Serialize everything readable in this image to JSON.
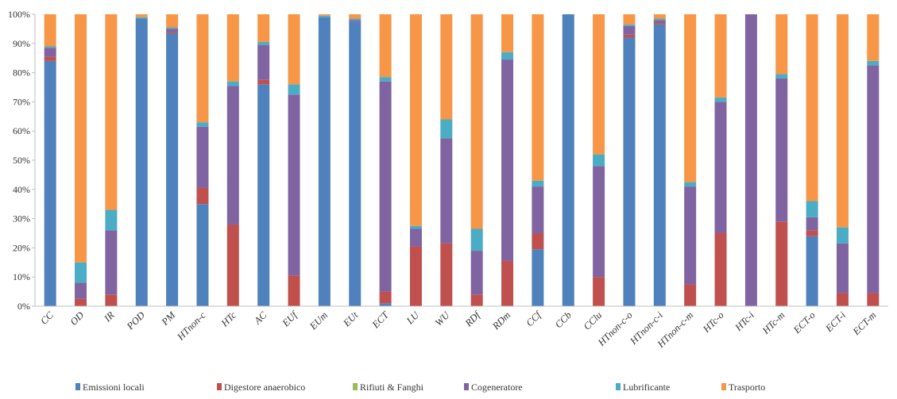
{
  "chart_data": {
    "type": "bar",
    "stacked": true,
    "normalized": true,
    "categories": [
      "CC",
      "OD",
      "IR",
      "POD",
      "PM",
      "HTnon-c",
      "HTc",
      "AC",
      "EUf",
      "EUm",
      "EUt",
      "ECT",
      "LU",
      "WU",
      "RDf",
      "RDm",
      "CCf",
      "CCb",
      "CClu",
      "HTnon-c-o",
      "HTnon-c-i",
      "HTnon-c-m",
      "HTc-o",
      "HTc-i",
      "HTc-m",
      "ECT-o",
      "ECT-i",
      "ECT-m"
    ],
    "series": [
      {
        "name": "Emissioni locali",
        "color": "#4f81bd",
        "values": [
          84,
          0,
          0,
          98.5,
          93.5,
          35,
          0,
          76,
          0,
          99,
          97.5,
          1,
          0,
          0,
          0,
          0,
          19.5,
          100,
          0,
          92,
          96.5,
          0,
          0,
          0,
          0,
          24,
          0,
          0
        ]
      },
      {
        "name": "Digestore anaerobico",
        "color": "#c0504d",
        "values": [
          1.5,
          2.5,
          4,
          0,
          0.5,
          5.5,
          28,
          1.5,
          10.5,
          0,
          0,
          4,
          20.5,
          21.5,
          4,
          15.5,
          5.5,
          0,
          10,
          1,
          0.5,
          7.5,
          25,
          0,
          29,
          2,
          4.5,
          4.5
        ]
      },
      {
        "name": "Rifiuti & Fanghi",
        "color": "#9bbb59",
        "values": [
          0,
          0,
          0,
          0,
          0,
          0,
          0,
          0,
          0,
          0,
          0,
          0,
          0,
          0,
          0,
          0,
          0,
          0,
          0,
          0,
          0,
          0,
          0,
          0,
          0,
          0,
          0,
          0
        ]
      },
      {
        "name": "Cogeneratore",
        "color": "#8064a2",
        "values": [
          3,
          5.5,
          22,
          0,
          1,
          21,
          47.5,
          12,
          62,
          0,
          0.5,
          72,
          6,
          36,
          15,
          69,
          16,
          0,
          38,
          3,
          1,
          33.5,
          45,
          100,
          49,
          4.5,
          17,
          78
        ]
      },
      {
        "name": "Lubrificante",
        "color": "#4bacc6",
        "values": [
          0.5,
          7,
          7,
          0.5,
          0.5,
          1.5,
          1.5,
          1,
          3.5,
          0.5,
          0.5,
          1.5,
          1,
          6.5,
          7.5,
          2.5,
          2,
          0,
          4,
          0.5,
          0.5,
          1.5,
          1.5,
          0,
          1.5,
          5.5,
          5.5,
          1.5
        ]
      },
      {
        "name": "Trasporto",
        "color": "#f79646",
        "values": [
          11,
          85,
          67,
          1,
          4.5,
          37,
          23,
          9.5,
          24,
          0.5,
          1.5,
          21.5,
          72.5,
          36,
          73.5,
          13,
          57,
          0,
          48,
          3.5,
          1.5,
          57.5,
          28.5,
          0,
          20.5,
          64,
          73,
          16
        ]
      }
    ],
    "yticks": [
      "0%",
      "10%",
      "20%",
      "30%",
      "40%",
      "50%",
      "60%",
      "70%",
      "80%",
      "90%",
      "100%"
    ],
    "ylim": [
      0,
      100
    ],
    "grid": false,
    "legend_position": "bottom"
  }
}
